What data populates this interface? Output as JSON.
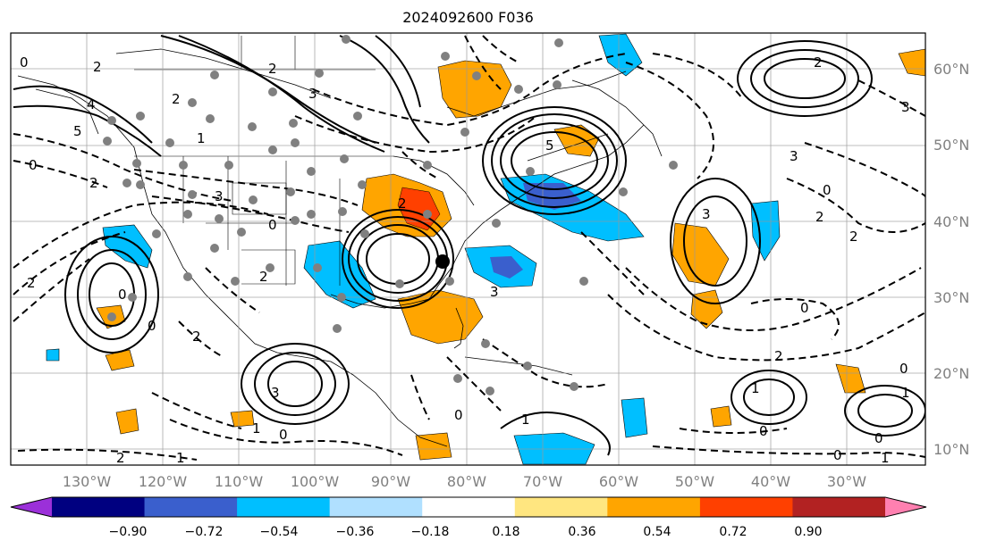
{
  "title": "2024092600 F036",
  "map": {
    "lon_labels": [
      "130°W",
      "120°W",
      "110°W",
      "100°W",
      "90°W",
      "80°W",
      "70°W",
      "60°W",
      "50°W",
      "40°W",
      "30°W"
    ],
    "lat_labels": [
      "60°N",
      "50°N",
      "40°N",
      "30°N",
      "20°N",
      "10°N"
    ],
    "contour_labels": [
      "0",
      "2",
      "4",
      "5",
      "0",
      "2",
      "3",
      "2",
      "2",
      "0",
      "1",
      "2",
      "3",
      "0",
      "2",
      "5",
      "2",
      "3",
      "0",
      "0",
      "1",
      "2",
      "3",
      "0",
      "3",
      "1",
      "2",
      "0",
      "1",
      "0",
      "0",
      "3",
      "1",
      "0",
      "2",
      "1",
      "0",
      "2",
      "1",
      "2",
      "3",
      "0",
      "2"
    ]
  },
  "colorbar": {
    "ticks": [
      "−0.90",
      "−0.72",
      "−0.54",
      "−0.36",
      "−0.18",
      "0.18",
      "0.36",
      "0.54",
      "0.72",
      "0.90"
    ],
    "colors": [
      "#9b30d9",
      "#000080",
      "#3a5fcd",
      "#00bfff",
      "#b0e0ff",
      "#ffffff",
      "#ffe680",
      "#ffa500",
      "#ff4000",
      "#b22222",
      "#ff80b0"
    ]
  }
}
